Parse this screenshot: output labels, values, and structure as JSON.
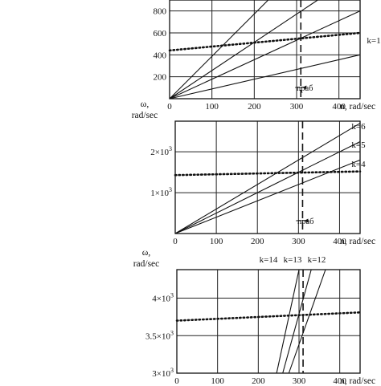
{
  "chart_data": [
    {
      "type": "line",
      "xlabel": "n, rad/sec",
      "ylabel": "",
      "x_ticks": [
        "0",
        "100",
        "200",
        "300",
        "400"
      ],
      "y_ticks": [
        "200",
        "400",
        "600",
        "800"
      ],
      "xlim": [
        0,
        450
      ],
      "ylim": [
        0,
        900
      ],
      "series": [
        {
          "x": [
            0,
            233
          ],
          "y": [
            0,
            900
          ]
        },
        {
          "x": [
            0,
            350
          ],
          "y": [
            0,
            900
          ]
        },
        {
          "x": [
            0,
            450
          ],
          "y": [
            0,
            800
          ]
        },
        {
          "name": "k=1",
          "x": [
            0,
            450
          ],
          "y": [
            0,
            400
          ]
        },
        {
          "style": "dotted",
          "x": [
            0,
            450
          ],
          "y": [
            440,
            600
          ]
        }
      ],
      "vline": {
        "x": 310,
        "label": "nраб"
      }
    },
    {
      "type": "line",
      "xlabel": "n, rad/sec",
      "ylabel": "ω,\nrad/sec",
      "x_ticks": [
        "0",
        "100",
        "200",
        "300",
        "400"
      ],
      "y_ticks": [
        "1×10",
        "2×10"
      ],
      "y_tick_exp": "3",
      "y_tick_values": [
        1000,
        2000
      ],
      "xlim": [
        0,
        450
      ],
      "ylim": [
        0,
        2750
      ],
      "series": [
        {
          "name": "k=6",
          "x": [
            0,
            450
          ],
          "y": [
            0,
            2700
          ]
        },
        {
          "name": "k=5",
          "x": [
            0,
            450
          ],
          "y": [
            0,
            2250
          ]
        },
        {
          "name": "k=4",
          "x": [
            0,
            450
          ],
          "y": [
            0,
            1800
          ]
        },
        {
          "style": "dotted",
          "x": [
            0,
            450
          ],
          "y": [
            1430,
            1520
          ]
        }
      ],
      "vline": {
        "x": 310,
        "label": "nраб"
      }
    },
    {
      "type": "line",
      "xlabel": "n, rad/sec",
      "ylabel": "ω,\nrad/sec",
      "x_ticks": [
        "0",
        "100",
        "200",
        "300",
        "400"
      ],
      "y_ticks": [
        "3×10",
        "3.5×10",
        "4×10"
      ],
      "y_tick_exp": "3",
      "y_tick_values": [
        3000,
        3500,
        4000
      ],
      "xlim": [
        0,
        450
      ],
      "ylim": [
        3000,
        4380
      ],
      "series": [
        {
          "name": "k=14",
          "x": [
            245,
            300
          ],
          "y": [
            3000,
            4380
          ]
        },
        {
          "name": "k=13",
          "x": [
            260,
            330
          ],
          "y": [
            3000,
            4380
          ]
        },
        {
          "name": "k=12",
          "x": [
            275,
            365
          ],
          "y": [
            3000,
            4380
          ]
        },
        {
          "style": "dotted",
          "x": [
            0,
            450
          ],
          "y": [
            3700,
            3810
          ]
        }
      ],
      "vline": {
        "x": 310,
        "label": ""
      }
    }
  ]
}
